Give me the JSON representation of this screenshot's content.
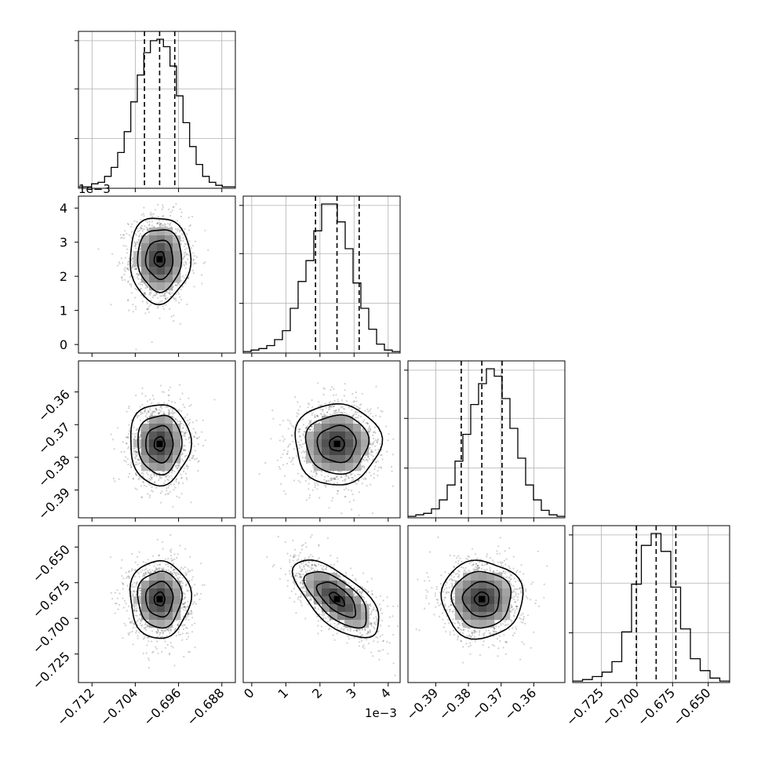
{
  "chart_data": {
    "type": "corner",
    "n_params": 4,
    "grid": true,
    "quantile_lines": "dashed",
    "params": [
      {
        "range": [
          -0.7145,
          -0.6855
        ],
        "ticks": [
          -0.712,
          -0.704,
          -0.696,
          -0.688
        ],
        "tick_labels": [
          "−0.712",
          "−0.704",
          "−0.696",
          "−0.688"
        ],
        "offset": "",
        "median": -0.6995,
        "q16": -0.7023,
        "q84": -0.6967,
        "hist": [
          1,
          1,
          3,
          4,
          8,
          14,
          24,
          38,
          58,
          76,
          91,
          99,
          100,
          95,
          82,
          62,
          44,
          28,
          16,
          8,
          4,
          2,
          1,
          1
        ],
        "center": -0.6995,
        "sigma": 0.0028
      },
      {
        "range": [
          -0.25,
          4.35
        ],
        "ticks": [
          0,
          1,
          2,
          3,
          4
        ],
        "tick_labels": [
          "0",
          "1",
          "2",
          "3",
          "4"
        ],
        "offset": "1e−3",
        "median": 2.5,
        "q16": 1.87,
        "q84": 3.15,
        "hist": [
          1,
          2,
          3,
          5,
          9,
          15,
          30,
          48,
          62,
          82,
          100,
          100,
          88,
          70,
          47,
          30,
          16,
          6,
          2,
          1
        ],
        "center": 2.5,
        "sigma": 0.63
      },
      {
        "range": [
          -0.3985,
          -0.3505
        ],
        "ticks": [
          -0.39,
          -0.38,
          -0.37,
          -0.36
        ],
        "tick_labels": [
          "−0.39",
          "−0.38",
          "−0.37",
          "−0.36"
        ],
        "offset": "",
        "median": -0.3759,
        "q16": -0.3822,
        "q84": -0.3697,
        "hist": [
          1,
          2,
          3,
          6,
          12,
          22,
          38,
          56,
          76,
          90,
          100,
          95,
          80,
          60,
          40,
          22,
          12,
          5,
          2,
          1
        ],
        "center": -0.3759,
        "sigma": 0.0062
      },
      {
        "range": [
          -0.745,
          -0.635
        ],
        "ticks": [
          -0.725,
          -0.7,
          -0.675,
          -0.65
        ],
        "tick_labels": [
          "−0.725",
          "−0.700",
          "−0.675",
          "−0.650"
        ],
        "offset": "",
        "median": -0.6865,
        "q16": -0.7004,
        "q84": -0.6727,
        "hist": [
          1,
          2,
          4,
          7,
          14,
          34,
          66,
          92,
          100,
          88,
          64,
          36,
          16,
          8,
          3,
          1
        ],
        "center": -0.6865,
        "sigma": 0.0136
      }
    ],
    "correlations": [
      [
        1,
        0,
        0,
        0
      ],
      [
        0,
        1,
        0,
        -0.65
      ],
      [
        0,
        0,
        1,
        0
      ],
      [
        0,
        -0.65,
        0,
        1
      ]
    ]
  }
}
